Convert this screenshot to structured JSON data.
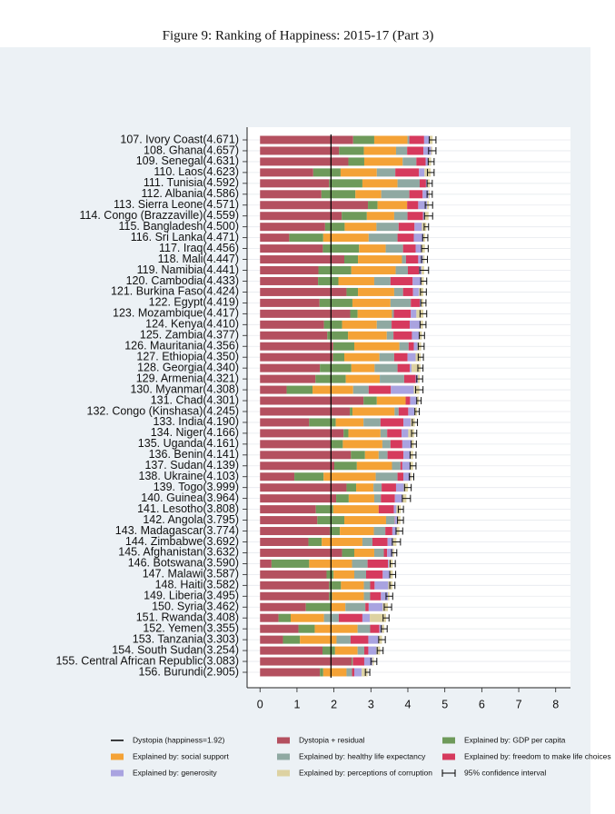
{
  "chart_data": {
    "type": "bar",
    "orientation": "horizontal",
    "stacked": true,
    "title": "Figure 9: Ranking of Happiness: 2015-17 (Part 3)",
    "categories": [
      "107. Ivory Coast(4.671)",
      "108. Ghana(4.657)",
      "109. Senegal(4.631)",
      "110. Laos(4.623)",
      "111. Tunisia(4.592)",
      "112. Albania(4.586)",
      "113. Sierra Leone(4.571)",
      "114. Congo (Brazzaville)(4.559)",
      "115. Bangladesh(4.500)",
      "116. Sri Lanka(4.471)",
      "117. Iraq(4.456)",
      "118. Mali(4.447)",
      "119. Namibia(4.441)",
      "120. Cambodia(4.433)",
      "121. Burkina Faso(4.424)",
      "122. Egypt(4.419)",
      "123. Mozambique(4.417)",
      "124. Kenya(4.410)",
      "125. Zambia(4.377)",
      "126. Mauritania(4.356)",
      "127. Ethiopia(4.350)",
      "128. Georgia(4.340)",
      "129. Armenia(4.321)",
      "130. Myanmar(4.308)",
      "131. Chad(4.301)",
      "132. Congo (Kinshasa)(4.245)",
      "133. India(4.190)",
      "134. Niger(4.166)",
      "135. Uganda(4.161)",
      "136. Benin(4.141)",
      "137. Sudan(4.139)",
      "138. Ukraine(4.103)",
      "139. Togo(3.999)",
      "140. Guinea(3.964)",
      "141. Lesotho(3.808)",
      "142. Angola(3.795)",
      "143. Madagascar(3.774)",
      "144. Zimbabwe(3.692)",
      "145. Afghanistan(3.632)",
      "146. Botswana(3.590)",
      "147. Malawi(3.587)",
      "148. Haiti(3.582)",
      "149. Liberia(3.495)",
      "150. Syria(3.462)",
      "151. Rwanda(3.408)",
      "152. Yemen(3.355)",
      "153. Tanzania(3.303)",
      "154. South Sudan(3.254)",
      "155. Central African Republic(3.083)",
      "156. Burundi(2.905)"
    ],
    "series": [
      {
        "name": "Dystopia + residual",
        "color": "#b4505f",
        "values": [
          2.52,
          2.14,
          2.39,
          1.44,
          1.87,
          1.66,
          2.92,
          2.21,
          1.76,
          0.79,
          1.7,
          2.28,
          1.58,
          1.57,
          2.34,
          1.61,
          2.44,
          1.73,
          1.82,
          1.98,
          1.97,
          1.62,
          1.5,
          0.72,
          2.8,
          2.43,
          1.33,
          2.26,
          1.91,
          2.46,
          2.01,
          0.93,
          2.34,
          2.06,
          1.51,
          1.55,
          1.89,
          1.31,
          2.22,
          0.31,
          1.8,
          1.87,
          1.87,
          1.24,
          0.5,
          1.04,
          0.62,
          1.69,
          2.48,
          1.62
        ]
      },
      {
        "name": "Explained by: GDP per capita",
        "color": "#6e9a5a",
        "values": [
          0.57,
          0.67,
          0.43,
          0.74,
          0.9,
          0.92,
          0.26,
          0.68,
          0.53,
          0.92,
          0.98,
          0.37,
          0.89,
          0.55,
          0.31,
          0.89,
          0.2,
          0.49,
          0.56,
          0.57,
          0.31,
          0.85,
          0.82,
          0.7,
          0.36,
          0.07,
          0.72,
          0.13,
          0.33,
          0.38,
          0.61,
          0.79,
          0.26,
          0.34,
          0.47,
          0.73,
          0.27,
          0.36,
          0.33,
          1.02,
          0.19,
          0.32,
          0.08,
          0.69,
          0.33,
          0.44,
          0.46,
          0.34,
          0.02,
          0.09
        ]
      },
      {
        "name": "Explained by: social support",
        "color": "#f4a236",
        "values": [
          0.9,
          0.87,
          1.04,
          0.98,
          0.95,
          0.7,
          0.8,
          0.74,
          0.86,
          1.23,
          0.72,
          1.19,
          1.2,
          0.97,
          0.98,
          1.03,
          0.93,
          0.94,
          1.05,
          1.22,
          0.95,
          0.63,
          0.92,
          1.1,
          0.78,
          1.14,
          0.75,
          0.87,
          1.07,
          0.37,
          0.95,
          1.41,
          0.47,
          0.69,
          1.23,
          1.13,
          0.92,
          1.1,
          0.54,
          1.16,
          0.56,
          0.62,
          0.86,
          0.38,
          0.9,
          1.16,
          0.99,
          0.61,
          0,
          0.63
        ]
      },
      {
        "name": "Explained by: healthy life expectancy",
        "color": "#8fa9a2",
        "values": [
          0.05,
          0.3,
          0.37,
          0.5,
          0.6,
          0.76,
          0,
          0.36,
          0.6,
          0.78,
          0.47,
          0.11,
          0.33,
          0.44,
          0.24,
          0.55,
          0.05,
          0.4,
          0.18,
          0.25,
          0.4,
          0.62,
          0.66,
          0.42,
          0,
          0.11,
          0.46,
          0.18,
          0.22,
          0.24,
          0.23,
          0.59,
          0.22,
          0.18,
          0,
          0.23,
          0.31,
          0.27,
          0.26,
          0.42,
          0.32,
          0.17,
          0.17,
          0.54,
          0.4,
          0.34,
          0.38,
          0.18,
          0.01,
          0.15
        ]
      },
      {
        "name": "Explained by: freedom to make life choices",
        "color": "#d63a5d",
        "values": [
          0.4,
          0.44,
          0.25,
          0.64,
          0.17,
          0.36,
          0.3,
          0.42,
          0.43,
          0.44,
          0.34,
          0.33,
          0.3,
          0.6,
          0.27,
          0.24,
          0.46,
          0.49,
          0.5,
          0.14,
          0.36,
          0.33,
          0.31,
          0.6,
          0.12,
          0.26,
          0.62,
          0.39,
          0.32,
          0.43,
          0.05,
          0.16,
          0.39,
          0.38,
          0.41,
          0.01,
          0.19,
          0.41,
          0.09,
          0.55,
          0.45,
          0.12,
          0.29,
          0.09,
          0.64,
          0.25,
          0.48,
          0.11,
          0.31,
          0.06
        ]
      },
      {
        "name": "Explained by: generosity",
        "color": "#a9a3e0",
        "values": [
          0.15,
          0.21,
          0.08,
          0.15,
          0.04,
          0.16,
          0.24,
          0.04,
          0.2,
          0.26,
          0.16,
          0.13,
          0.07,
          0.24,
          0.16,
          0.04,
          0.15,
          0.3,
          0.19,
          0.1,
          0.22,
          0.05,
          0.06,
          0.62,
          0.18,
          0.17,
          0.2,
          0.18,
          0.25,
          0.2,
          0.2,
          0.19,
          0.21,
          0.2,
          0.07,
          0.06,
          0.12,
          0.15,
          0.15,
          0.03,
          0.18,
          0.37,
          0.19,
          0.38,
          0.2,
          0.07,
          0.27,
          0.22,
          0.22,
          0.2
        ]
      },
      {
        "name": "Explained by: perceptions of corruption",
        "color": "#ddd2a2",
        "values": [
          0.08,
          0.03,
          0.07,
          0.17,
          0.06,
          0.03,
          0.05,
          0.11,
          0.12,
          0.05,
          0.09,
          0.04,
          0.07,
          0.06,
          0.12,
          0.06,
          0.19,
          0.06,
          0.08,
          0.1,
          0.14,
          0.24,
          0.05,
          0.15,
          0.06,
          0.07,
          0.11,
          0.16,
          0.06,
          0.06,
          0.09,
          0.03,
          0.11,
          0.11,
          0.12,
          0.09,
          0.07,
          0.09,
          0.04,
          0.1,
          0.09,
          0.11,
          0.04,
          0.14,
          0.44,
          0.06,
          0.1,
          0.1,
          0.04,
          0.16
        ]
      }
    ],
    "error_bars": {
      "name": "95% confidence interval",
      "values": [
        0.09,
        0.1,
        0.08,
        0.09,
        0.07,
        0.07,
        0.1,
        0.11,
        0.06,
        0.07,
        0.09,
        0.08,
        0.12,
        0.08,
        0.08,
        0.07,
        0.09,
        0.08,
        0.07,
        0.08,
        0.07,
        0.07,
        0.08,
        0.1,
        0.06,
        0.06,
        0.07,
        0.07,
        0.07,
        0.08,
        0.08,
        0.06,
        0.09,
        0.11,
        0.07,
        0.08,
        0.09,
        0.11,
        0.07,
        0.07,
        0.08,
        0.07,
        0.09,
        0.1,
        0.08,
        0.08,
        0.09,
        0.08,
        0.08,
        0.06
      ]
    },
    "reference_line": {
      "label": "Dystopia (happiness=1.92)",
      "value": 1.92
    },
    "xlim": [
      -0.35,
      8.4
    ],
    "xticks": [
      0,
      1,
      2,
      3,
      4,
      5,
      6,
      7,
      8
    ],
    "grid": true
  }
}
